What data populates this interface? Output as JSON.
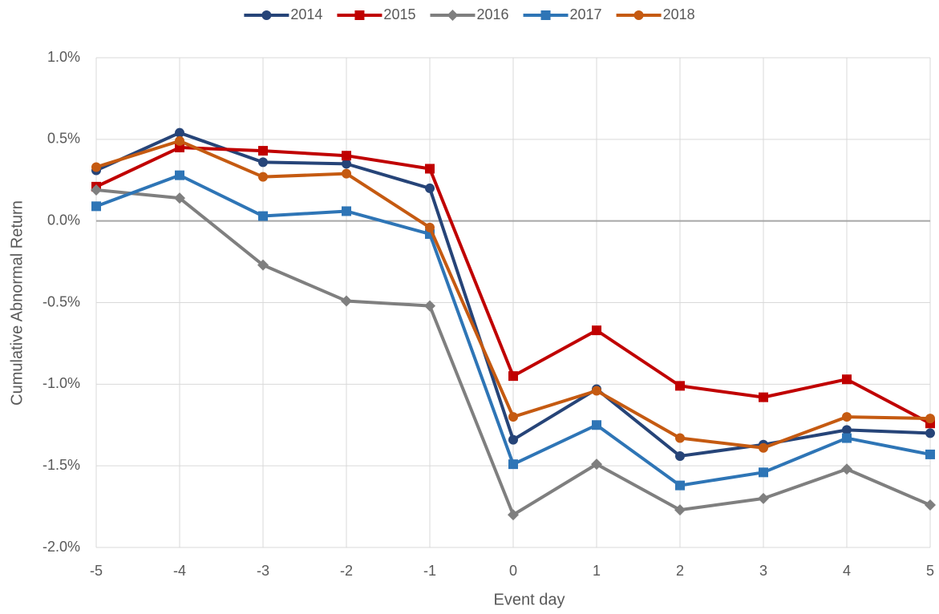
{
  "chart_data": {
    "type": "line",
    "x_label": "Event day",
    "y_label": "Cumulative Abnormal Return",
    "x": [
      -5,
      -4,
      -3,
      -2,
      -1,
      0,
      1,
      2,
      3,
      4,
      5
    ],
    "xlim": [
      -5,
      5
    ],
    "xticks": [
      -5,
      -4,
      -3,
      -2,
      -1,
      0,
      1,
      2,
      3,
      4,
      5
    ],
    "ylim": [
      -2,
      1
    ],
    "yticks": [
      {
        "value": -2,
        "label": "-2.0%"
      },
      {
        "value": -1.5,
        "label": "-1.5%"
      },
      {
        "value": -1,
        "label": "-1.0%"
      },
      {
        "value": -0.5,
        "label": "-0.5%"
      },
      {
        "value": 0,
        "label": "0.0%"
      },
      {
        "value": 0.5,
        "label": "0.5%"
      },
      {
        "value": 1,
        "label": "1.0%"
      }
    ],
    "grid": true,
    "legend": "top",
    "series": [
      {
        "name": "2014",
        "color": "#264478",
        "marker": "circle",
        "values": [
          0.31,
          0.54,
          0.36,
          0.35,
          0.2,
          -1.34,
          -1.03,
          -1.44,
          -1.37,
          -1.28,
          -1.3
        ]
      },
      {
        "name": "2015",
        "color": "#c00000",
        "marker": "square",
        "values": [
          0.21,
          0.45,
          0.43,
          0.4,
          0.32,
          -0.95,
          -0.67,
          -1.01,
          -1.08,
          -0.97,
          -1.24
        ]
      },
      {
        "name": "2016",
        "color": "#7f7f7f",
        "marker": "diamond",
        "values": [
          0.19,
          0.14,
          -0.27,
          -0.49,
          -0.52,
          -1.8,
          -1.49,
          -1.77,
          -1.7,
          -1.52,
          -1.74
        ]
      },
      {
        "name": "2017",
        "color": "#2e75b6",
        "marker": "square",
        "values": [
          0.09,
          0.28,
          0.03,
          0.06,
          -0.08,
          -1.49,
          -1.25,
          -1.62,
          -1.54,
          -1.33,
          -1.43
        ]
      },
      {
        "name": "2018",
        "color": "#c55a11",
        "marker": "circle",
        "values": [
          0.33,
          0.49,
          0.27,
          0.29,
          -0.04,
          -1.2,
          -1.04,
          -1.33,
          -1.39,
          -1.2,
          -1.21
        ]
      }
    ]
  }
}
